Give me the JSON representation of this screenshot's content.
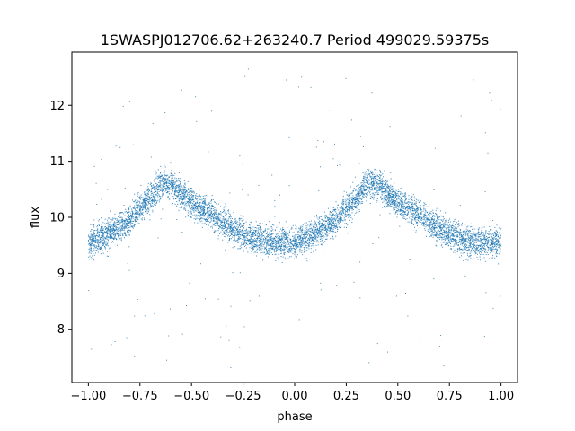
{
  "chart_data": {
    "type": "scatter",
    "title": "1SWASPJ012706.62+263240.7 Period 499029.59375s",
    "xlabel": "phase",
    "ylabel": "flux",
    "xlim": [
      -1.08,
      1.08
    ],
    "ylim": [
      7.05,
      12.95
    ],
    "x_ticks": [
      -1.0,
      -0.75,
      -0.5,
      -0.25,
      0.0,
      0.25,
      0.5,
      0.75,
      1.0
    ],
    "x_tick_labels": [
      "−1.00",
      "−0.75",
      "−0.50",
      "−0.25",
      "0.00",
      "0.25",
      "0.50",
      "0.75",
      "1.00"
    ],
    "y_ticks": [
      8,
      9,
      10,
      11,
      12
    ],
    "y_tick_labels": [
      "8",
      "9",
      "10",
      "11",
      "12"
    ],
    "grid": false,
    "marker_color": "#1f77b4",
    "series": [
      {
        "phase_range": [
          -1.0,
          1.0
        ],
        "mean_curve": {
          "phase": [
            0.0,
            0.1,
            0.2,
            0.3,
            0.35,
            0.4,
            0.5,
            0.6,
            0.7,
            0.8,
            0.9,
            1.0
          ],
          "flux": [
            9.55,
            9.7,
            9.95,
            10.35,
            10.6,
            10.6,
            10.25,
            10.05,
            9.8,
            9.6,
            9.55,
            9.55
          ]
        },
        "scatter_sigma": 0.35,
        "outlier_range": [
          7.3,
          12.7
        ]
      }
    ]
  }
}
